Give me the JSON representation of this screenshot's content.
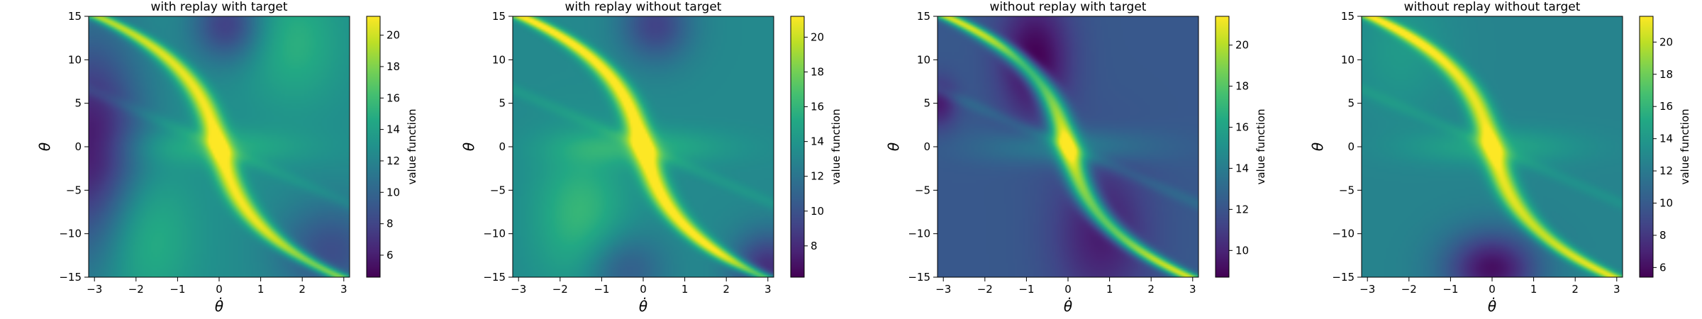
{
  "chart_data": [
    {
      "type": "heatmap",
      "title": "with replay with target",
      "xlabel": "θ̇",
      "ylabel": "θ",
      "xlim": [
        -3.14,
        3.14
      ],
      "ylim": [
        -15,
        15
      ],
      "xticks": [
        -3,
        -2,
        -1,
        0,
        1,
        2,
        3
      ],
      "yticks": [
        -15,
        -10,
        -5,
        0,
        5,
        10,
        15
      ],
      "colorbar": {
        "label": "value function",
        "range": [
          4.6,
          21.2
        ],
        "ticks": [
          6,
          8,
          10,
          12,
          14,
          16,
          18,
          20
        ]
      },
      "colormap": "viridis"
    },
    {
      "type": "heatmap",
      "title": "with replay without target",
      "xlabel": "θ̇",
      "ylabel": "θ",
      "xlim": [
        -3.14,
        3.14
      ],
      "ylim": [
        -15,
        15
      ],
      "xticks": [
        -3,
        -2,
        -1,
        0,
        1,
        2,
        3
      ],
      "yticks": [
        -15,
        -10,
        -5,
        0,
        5,
        10,
        15
      ],
      "colorbar": {
        "label": "value function",
        "range": [
          6.2,
          21.2
        ],
        "ticks": [
          8,
          10,
          12,
          14,
          16,
          18,
          20
        ]
      },
      "colormap": "viridis"
    },
    {
      "type": "heatmap",
      "title": "without replay with target",
      "xlabel": "θ̇",
      "ylabel": "θ",
      "xlim": [
        -3.14,
        3.14
      ],
      "ylim": [
        -15,
        15
      ],
      "xticks": [
        -3,
        -2,
        -1,
        0,
        1,
        2,
        3
      ],
      "yticks": [
        -15,
        -10,
        -5,
        0,
        5,
        10,
        15
      ],
      "colorbar": {
        "label": "value function",
        "range": [
          8.7,
          21.4
        ],
        "ticks": [
          10,
          12,
          14,
          16,
          18,
          20
        ]
      },
      "colormap": "viridis"
    },
    {
      "type": "heatmap",
      "title": "without replay without target",
      "xlabel": "θ̇",
      "ylabel": "θ",
      "xlim": [
        -3.14,
        3.14
      ],
      "ylim": [
        -15,
        15
      ],
      "xticks": [
        -3,
        -2,
        -1,
        0,
        1,
        2,
        3
      ],
      "yticks": [
        -15,
        -10,
        -5,
        0,
        5,
        10,
        15
      ],
      "colorbar": {
        "label": "value function",
        "range": [
          5.4,
          21.6
        ],
        "ticks": [
          6,
          8,
          10,
          12,
          14,
          16,
          18,
          20
        ]
      },
      "colormap": "viridis"
    }
  ]
}
